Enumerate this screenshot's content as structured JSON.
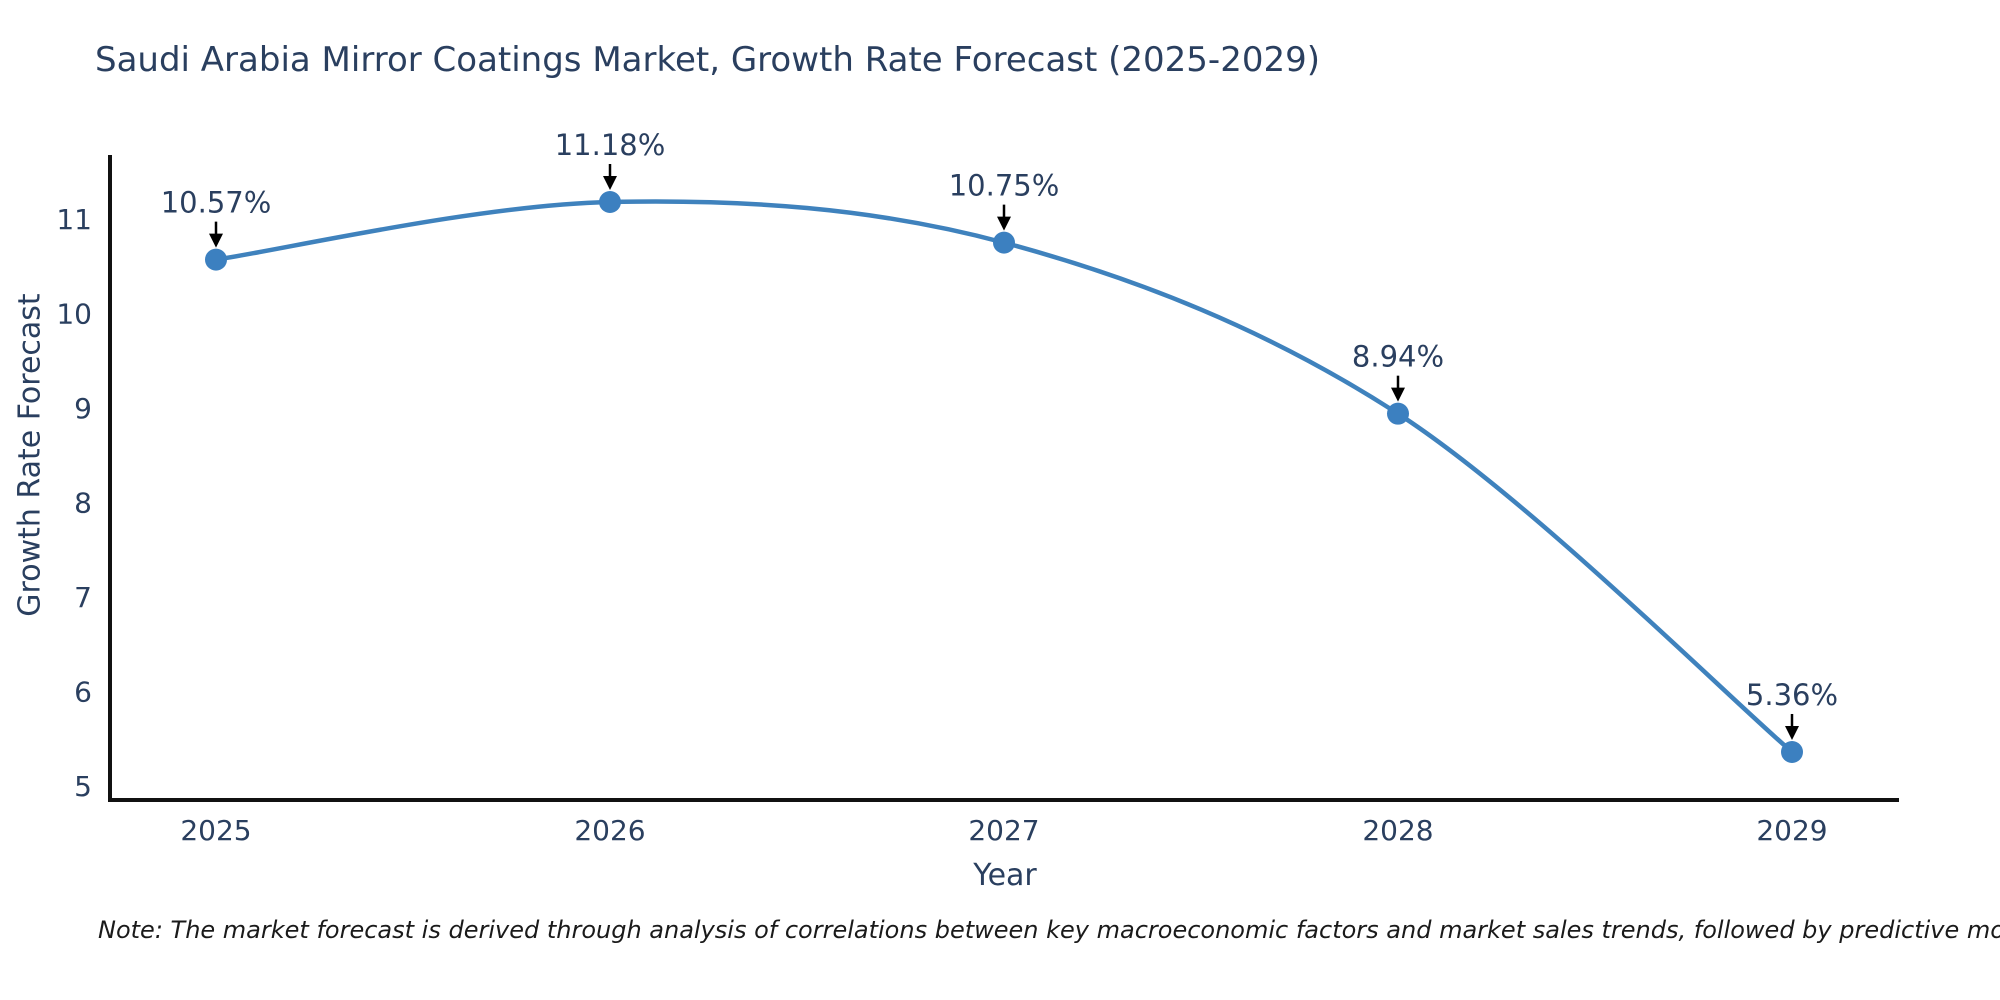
{
  "title": "Saudi Arabia Mirror Coatings Market, Growth Rate Forecast (2025-2029)",
  "note": "Note: The market forecast is derived through analysis of correlations between key macroeconomic factors and market sales trends, followed by predictive modeling to project future sales",
  "chart_data": {
    "type": "line",
    "title": "Saudi Arabia Mirror Coatings Market, Growth Rate Forecast (2025-2029)",
    "xlabel": "Year",
    "ylabel": "Growth Rate Forecast",
    "x": [
      2025,
      2026,
      2027,
      2028,
      2029
    ],
    "values": [
      10.57,
      11.18,
      10.75,
      8.94,
      5.36
    ],
    "point_labels": [
      "10.57%",
      "11.18%",
      "10.75%",
      "8.94%",
      "5.36%"
    ],
    "xticks": [
      "2025",
      "2026",
      "2027",
      "2028",
      "2029"
    ],
    "yticks": [
      5,
      6,
      7,
      8,
      9,
      10,
      11
    ],
    "xlim": [
      2024.73,
      2029.27
    ],
    "ylim": [
      4.85,
      11.65
    ],
    "grid": false,
    "legend": "none",
    "line_shape": "spline",
    "annotation_style": "text-with-down-arrow"
  },
  "colors": {
    "line": "#3f82bd",
    "marker": "#3c80c0",
    "axis_line": "#111111",
    "tick_text": "#2a3f5f",
    "annotation_text": "#2a3f5f",
    "annotation_arrow": "#000000",
    "title_text": "#2a3f5f",
    "note_text": "#1a1a1a",
    "background": "#ffffff"
  }
}
